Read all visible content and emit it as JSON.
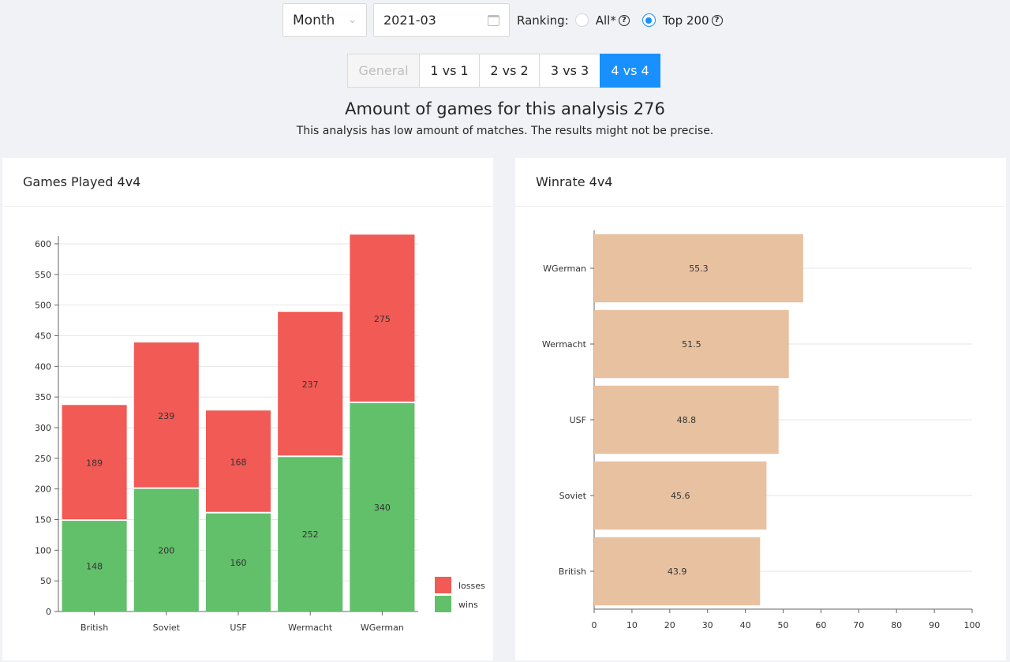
{
  "controls": {
    "period_select": "Month",
    "date_value": "2021-03",
    "ranking_label": "Ranking:",
    "ranking_options": [
      {
        "label": "All*",
        "selected": false
      },
      {
        "label": "Top 200",
        "selected": true
      }
    ]
  },
  "tabs": [
    {
      "label": "General",
      "state": "disabled"
    },
    {
      "label": "1 vs 1",
      "state": "normal"
    },
    {
      "label": "2 vs 2",
      "state": "normal"
    },
    {
      "label": "3 vs 3",
      "state": "normal"
    },
    {
      "label": "4 vs 4",
      "state": "active"
    }
  ],
  "summary": {
    "title": "Amount of games for this analysis 276",
    "warning": "This analysis has low amount of matches. The results might not be precise."
  },
  "games_card": {
    "title": "Games Played 4v4"
  },
  "winrate_card": {
    "title": "Winrate 4v4"
  },
  "colors": {
    "losses": "#f15a55",
    "wins": "#62bf6a",
    "winrate": "#e8c1a0",
    "accent": "#1890ff"
  },
  "chart_data": [
    {
      "type": "bar",
      "stacked": true,
      "categories": [
        "British",
        "Soviet",
        "USF",
        "Wermacht",
        "WGerman"
      ],
      "series": [
        {
          "name": "wins",
          "values": [
            148,
            200,
            160,
            252,
            340
          ]
        },
        {
          "name": "losses",
          "values": [
            189,
            239,
            168,
            237,
            275
          ]
        }
      ],
      "ylim": [
        0,
        600
      ],
      "yticks": [
        0,
        50,
        100,
        150,
        200,
        250,
        300,
        350,
        400,
        450,
        500,
        550,
        600
      ],
      "legend": "bottom-right",
      "grid": true
    },
    {
      "type": "bar",
      "orientation": "horizontal",
      "categories": [
        "WGerman",
        "Wermacht",
        "USF",
        "Soviet",
        "British"
      ],
      "values": [
        55.3,
        51.5,
        48.8,
        45.6,
        43.9
      ],
      "xlim": [
        0,
        100
      ],
      "xticks": [
        0,
        10,
        20,
        30,
        40,
        50,
        60,
        70,
        80,
        90,
        100
      ],
      "grid": true
    }
  ]
}
